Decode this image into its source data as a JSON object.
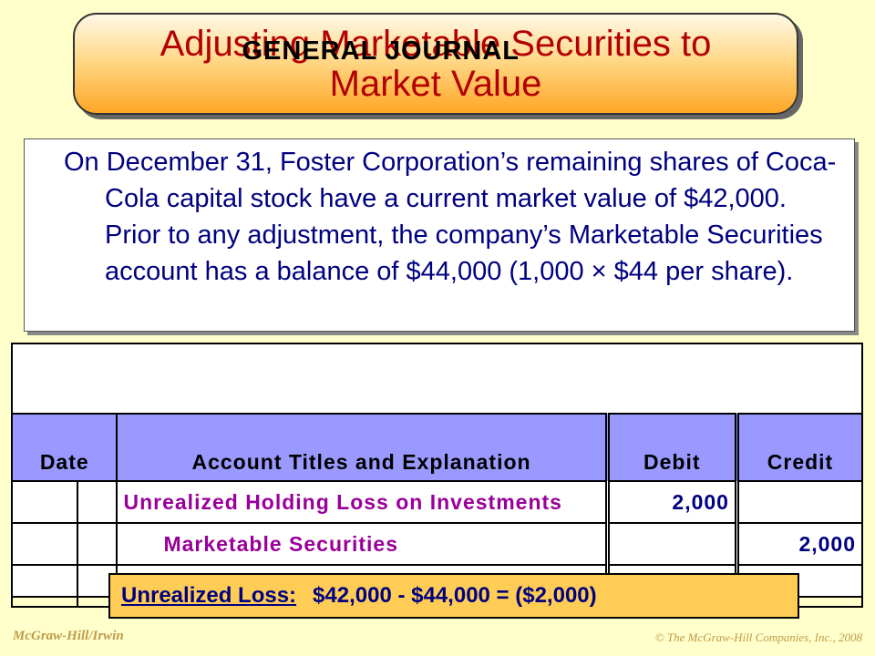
{
  "title": "Adjusting Marketable Securities to Market Value",
  "description": "On December 31, Foster Corporation’s remaining shares of Coca-Cola capital stock have a current market value of $42,000.  Prior to any adjustment, the company’s Marketable Securities account has a balance of $44,000 (1,000 × $44 per share).",
  "journal": {
    "title": "GENERAL JOURNAL",
    "headers": {
      "date": "Date",
      "account": "Account Titles and Explanation",
      "debit": "Debit",
      "credit": "Credit"
    },
    "rows": [
      {
        "account": "Unrealized Holding Loss on Investments",
        "debit": "2,000",
        "credit": ""
      },
      {
        "account": "Marketable Securities",
        "debit": "",
        "credit": "2,000"
      },
      {
        "account": "",
        "debit": "",
        "credit": ""
      }
    ]
  },
  "loss_note": {
    "label": "Unrealized Loss:",
    "formula": "$42,000 - $44,000 = ($2,000)"
  },
  "footer": {
    "publisher": "McGraw-Hill/Irwin",
    "copyright": "© The McGraw-Hill Companies, Inc., 2008"
  },
  "colors": {
    "background": "#ffffcc",
    "title_text": "#b30000",
    "body_text": "#000080",
    "header_fill": "#9999ff",
    "account_text": "#990099",
    "loss_box": "#ffcc55"
  }
}
